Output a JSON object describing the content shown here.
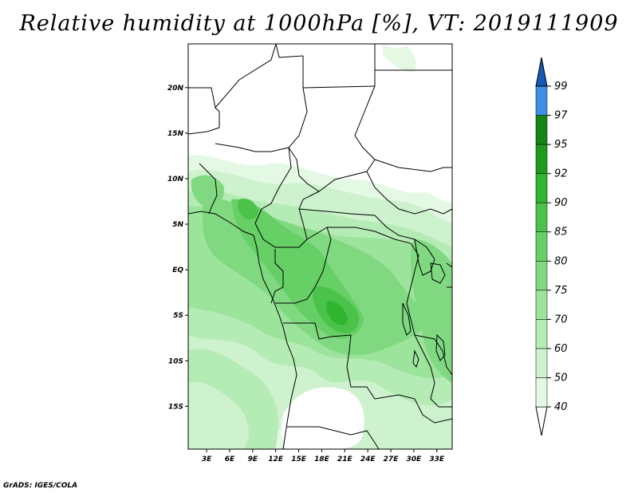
{
  "title": "Relative humidity at 1000hPa [%], VT: 2019111909",
  "credit": "GrADS: IGES/COLA",
  "map": {
    "lat_labels": [
      "20N",
      "15N",
      "10N",
      "5N",
      "EQ",
      "5S",
      "10S",
      "15S"
    ],
    "lat_values": [
      20,
      15,
      10,
      5,
      0,
      -5,
      -10,
      -15
    ],
    "lon_labels": [
      "3E",
      "6E",
      "9E",
      "12E",
      "15E",
      "18E",
      "21E",
      "24E",
      "27E",
      "30E",
      "33E"
    ],
    "lon_values": [
      3,
      6,
      9,
      12,
      15,
      18,
      21,
      24,
      27,
      30,
      33
    ],
    "lon_range": [
      0.6,
      35
    ],
    "lat_range": [
      -19.7,
      24.8
    ]
  },
  "colorbar": {
    "labels": [
      "40",
      "50",
      "60",
      "70",
      "75",
      "80",
      "85",
      "90",
      "92",
      "95",
      "97",
      "99"
    ],
    "colors": [
      "#ffffff",
      "#e4f9e4",
      "#cdf2cd",
      "#b5ebb5",
      "#9ce39c",
      "#80d980",
      "#66cf66",
      "#4bc34b",
      "#2fb52f",
      "#1e9b1e",
      "#128612",
      "#3d8fe6",
      "#1f6fd6",
      "#1558b8"
    ]
  }
}
